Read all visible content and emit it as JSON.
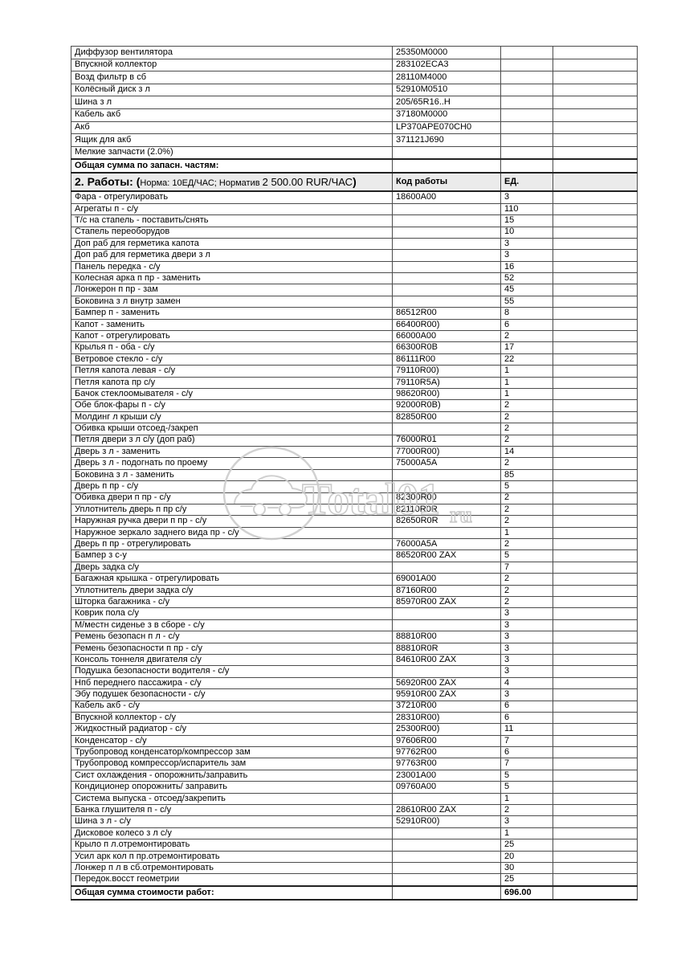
{
  "watermark": {
    "logo": "total01-car-logo",
    "text_main": "Total01",
    "text_suffix": "ru",
    "color": "#c9c9c9"
  },
  "colors": {
    "border": "#4c4c4c",
    "border_heavy": "#222222",
    "header_bg": "#ebebeb",
    "text": "#000000",
    "page_bg": "#ffffff"
  },
  "parts_section": {
    "rows": [
      {
        "name": "Диффузор вентилятора",
        "code": "25350M0000"
      },
      {
        "name": "Впускной коллектор",
        "code": "283102ECA3"
      },
      {
        "name": "Возд фильтр в сб",
        "code": "28110M4000"
      },
      {
        "name": "Колёсный диск з л",
        "code": "52910M0510"
      },
      {
        "name": "Шина з л",
        "code": "205/65R16..H"
      },
      {
        "name": "Кабель акб",
        "code": "37180M0000"
      },
      {
        "name": "Акб",
        "code": "LP370APE070CH0"
      },
      {
        "name": "Ящик для акб",
        "code": "371121J690"
      },
      {
        "name": "Мелкие запчасти (2.0%)",
        "code": ""
      }
    ],
    "total_label": "Общая сумма по запасн. частям:"
  },
  "works_section": {
    "header": {
      "title_bold": "2. Работы: (",
      "title_normal": "Норма: 10ЕД/ЧАС; Норматив ",
      "title_rate": "2 500.00 RUR/ЧАС",
      "title_close": ")",
      "col_code": "Код работы",
      "col_units": "ЕД."
    },
    "rows": [
      {
        "name": "Фара - отрегулировать",
        "code": "18600A00",
        "units": "3"
      },
      {
        "name": "Агрегаты п - с/у",
        "code": "",
        "units": "110"
      },
      {
        "name": "Т/с на стапель - поставить/снять",
        "code": "",
        "units": "15"
      },
      {
        "name": "Стапель переоборудов",
        "code": "",
        "units": "10"
      },
      {
        "name": "Доп раб для герметика капота",
        "code": "",
        "units": "3"
      },
      {
        "name": "Доп раб для герметика двери з л",
        "code": "",
        "units": "3"
      },
      {
        "name": "Панель передка - с/у",
        "code": "",
        "units": "16"
      },
      {
        "name": "Колесная арка п пр - заменить",
        "code": "",
        "units": "52"
      },
      {
        "name": "Лонжерон п пр - зам",
        "code": "",
        "units": "45"
      },
      {
        "name": "Боковина з л внутр замен",
        "code": "",
        "units": "55"
      },
      {
        "name": "Бампер п - заменить",
        "code": "86512R00",
        "units": "8"
      },
      {
        "name": "Капот - заменить",
        "code": "66400R00)",
        "units": "6"
      },
      {
        "name": "Капот - отрегулировать",
        "code": "66000A00",
        "units": "2"
      },
      {
        "name": "Крылья п - оба - с/у",
        "code": "66300R0B",
        "units": "17"
      },
      {
        "name": "Ветровое стекло - с/у",
        "code": "86111R00",
        "units": "22"
      },
      {
        "name": "Петля капота левая - с/у",
        "code": "79110R00)",
        "units": "1"
      },
      {
        "name": "Петля капота пр с/у",
        "code": "79110R5A)",
        "units": "1"
      },
      {
        "name": "Бачок стеклоомывателя - с/у",
        "code": "98620R00)",
        "units": "1"
      },
      {
        "name": "Обе блок-фары п - с/у",
        "code": "92000R0B)",
        "units": "2"
      },
      {
        "name": "Молдинг л крыши с/у",
        "code": "82850R00",
        "units": "2"
      },
      {
        "name": "Обивка крыши отсоед-/закреп",
        "code": "",
        "units": "2"
      },
      {
        "name": "Петля двери з л с/у (доп раб)",
        "code": "76000R01",
        "units": "2"
      },
      {
        "name": "Дверь з л - заменить",
        "code": "77000R00)",
        "units": "14"
      },
      {
        "name": "Дверь з л - подогнать по проему",
        "code": "75000A5A",
        "units": "2"
      },
      {
        "name": "Боковина з л  - заменить",
        "code": "",
        "units": "85"
      },
      {
        "name": "Дверь п пр - с/у",
        "code": "",
        "units": "5"
      },
      {
        "name": "Обивка двери п пр - с/у",
        "code": "82300R00",
        "units": "2"
      },
      {
        "name": "Уплотнитель дверь п пр с/у",
        "code": "82110R0R",
        "units": "2"
      },
      {
        "name": "Наружная ручка двери п пр - с/у",
        "code": "82650R0R",
        "units": "2"
      },
      {
        "name": "Наружное зеркало заднего вида пр - с/у",
        "code": "",
        "units": "1"
      },
      {
        "name": "Дверь п пр - отрегулировать",
        "code": "76000A5A",
        "units": "2"
      },
      {
        "name": "Бампер з с-у",
        "code": "86520R00 ZAX",
        "units": "5"
      },
      {
        "name": "Дверь задка с/у",
        "code": "",
        "units": "7"
      },
      {
        "name": "Багажная крышка - отрегулировать",
        "code": "69001A00",
        "units": "2"
      },
      {
        "name": "Уплотнитель двери задка с/у",
        "code": "87160R00",
        "units": "2"
      },
      {
        "name": "Шторка багажника - с/у",
        "code": "85970R00 ZAX",
        "units": "2"
      },
      {
        "name": "Коврик пола с/у",
        "code": "",
        "units": "3"
      },
      {
        "name": "М/местн сиденье з в сборе - с/у",
        "code": "",
        "units": "3"
      },
      {
        "name": "Ремень безопасн п л - с/у",
        "code": "88810R00",
        "units": "3"
      },
      {
        "name": "Ремень безопасности п пр  - с/у",
        "code": "88810R0R",
        "units": "3"
      },
      {
        "name": "Консоль тоннеля двигателя с/у",
        "code": "84610R00 ZAX",
        "units": "3"
      },
      {
        "name": "Подушка безопасности водителя - с/у",
        "code": "",
        "units": "3"
      },
      {
        "name": "Нпб переднего пассажира - с/у",
        "code": "56920R00 ZAX",
        "units": "4"
      },
      {
        "name": "Эбу подушек безопасности - с/у",
        "code": "95910R00 ZAX",
        "units": "3"
      },
      {
        "name": "Кабель акб - с/у",
        "code": "37210R00",
        "units": "6"
      },
      {
        "name": "Впускной коллектор - с/у",
        "code": "28310R00)",
        "units": "6"
      },
      {
        "name": "Жидкостный радиатор - с/у",
        "code": "25300R00)",
        "units": "11"
      },
      {
        "name": "Конденсатор - с/у",
        "code": "97606R00",
        "units": "7"
      },
      {
        "name": "Трубопровод конденсатор/компрессор зам",
        "code": "97762R00",
        "units": "6"
      },
      {
        "name": "Трубопровод компрессор/испаритель зам",
        "code": "97763R00",
        "units": "7"
      },
      {
        "name": "Сист охлаждения  - опорожнить/заправить",
        "code": "23001A00",
        "units": "5"
      },
      {
        "name": "Кондиционер опорожнить/ заправить",
        "code": "09760A00",
        "units": "5"
      },
      {
        "name": "Система выпуска - отсоед/закрепить",
        "code": "",
        "units": "1"
      },
      {
        "name": "Банка глушителя п - с/у",
        "code": "28610R00 ZAX",
        "units": "2"
      },
      {
        "name": "Шина з л - с/у",
        "code": "52910R00)",
        "units": "3"
      },
      {
        "name": "Дисковое колесо з л с/у",
        "code": "",
        "units": "1"
      },
      {
        "name": "Крыло п л.отремонтировать",
        "code": "",
        "units": "25"
      },
      {
        "name": "Усил арк кол п пр.отремонтировать",
        "code": "",
        "units": "20"
      },
      {
        "name": "Лонжер п л в сб.отремонтировать",
        "code": "",
        "units": "30"
      },
      {
        "name": "Передок.восст геометрии",
        "code": "",
        "units": "25"
      }
    ],
    "total_label": "Общая сумма стоимости работ:",
    "total_value": "696.00"
  }
}
